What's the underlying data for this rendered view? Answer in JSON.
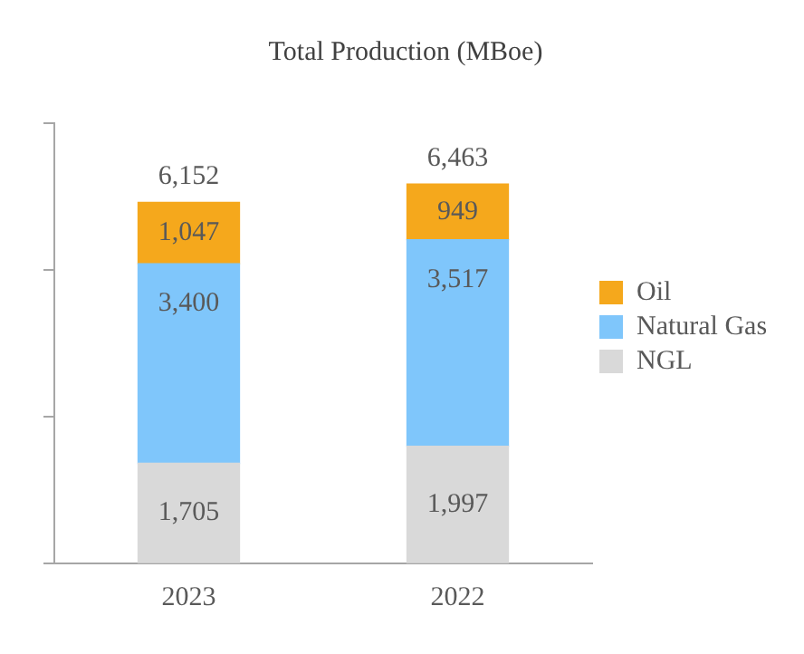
{
  "chart_data": {
    "type": "bar",
    "title": "Total Production (MBoe)",
    "categories": [
      "2023",
      "2022"
    ],
    "stacked": true,
    "series": [
      {
        "name": "NGL",
        "color": "#d9d9d9",
        "values": [
          1705,
          1997
        ],
        "value_labels": [
          "1,705",
          "1,997"
        ]
      },
      {
        "name": "Natural Gas",
        "color": "#7fc6fb",
        "values": [
          3400,
          3517
        ],
        "value_labels": [
          "3,400",
          "3,517"
        ]
      },
      {
        "name": "Oil",
        "color": "#f5a81c",
        "values": [
          1047,
          949
        ],
        "value_labels": [
          "1,047",
          "949"
        ]
      }
    ],
    "totals": [
      "6,152",
      "6,463"
    ],
    "ylim": [
      0,
      7500
    ],
    "yticks": [
      {
        "value": 0,
        "label": null
      },
      {
        "value": 2500,
        "label": null
      },
      {
        "value": 5000,
        "label": null
      },
      {
        "value": 7500,
        "label": null
      }
    ],
    "tick_labels": "x",
    "grid": false,
    "legend": "right"
  }
}
